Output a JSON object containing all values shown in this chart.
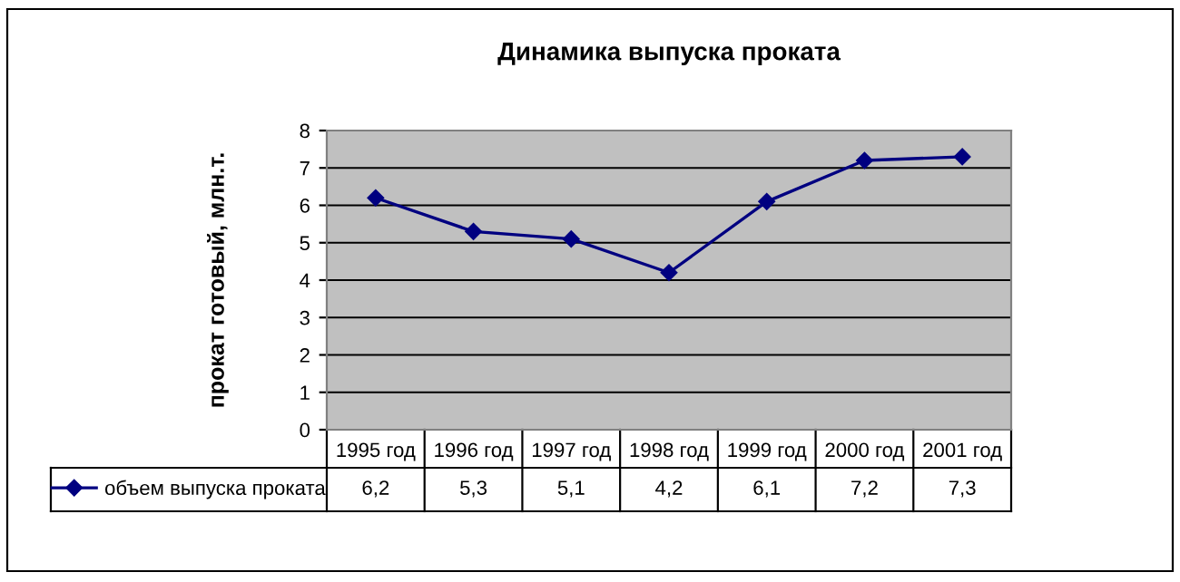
{
  "chart_data": {
    "type": "line",
    "title": "Динамика выпуска проката",
    "ylabel": "прокат готовый, млн.т.",
    "categories": [
      "1995 год",
      "1996 год",
      "1997 год",
      "1998 год",
      "1999 год",
      "2000 год",
      "2001 год"
    ],
    "series": [
      {
        "name": "объем выпуска проката",
        "color": "#000080",
        "values": [
          6.2,
          5.3,
          5.1,
          4.2,
          6.1,
          7.2,
          7.3
        ],
        "value_labels": [
          "6,2",
          "5,3",
          "5,1",
          "4,2",
          "6,1",
          "7,2",
          "7,3"
        ]
      }
    ],
    "ylim": [
      0,
      8
    ],
    "yticks": [
      0,
      1,
      2,
      3,
      4,
      5,
      6,
      7,
      8
    ],
    "grid": "y",
    "legend": "bottom left",
    "marker": "diamond",
    "line_style": "solid"
  }
}
